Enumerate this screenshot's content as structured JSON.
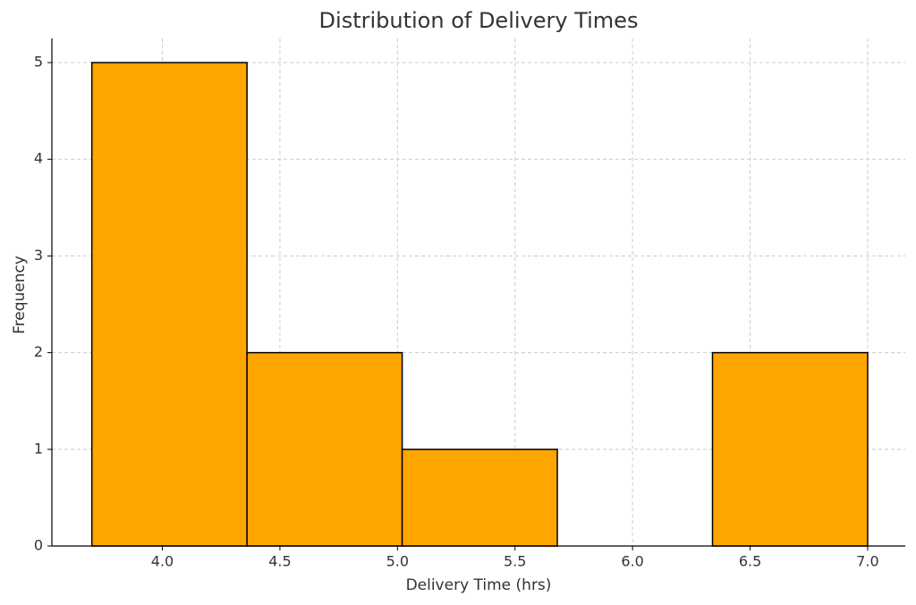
{
  "chart_data": {
    "type": "histogram",
    "title": "Distribution of Delivery Times",
    "x_label": "Delivery Time (hrs)",
    "y_label": "Frequency",
    "bins": [
      3.7,
      4.36,
      5.02,
      5.68,
      6.34,
      7.0
    ],
    "values": [
      5,
      2,
      1,
      0,
      2
    ],
    "color": "#ffa500",
    "edge_color": "#000000",
    "xlim": [
      3.53,
      7.16
    ],
    "ylim": [
      0,
      5.25
    ],
    "xticks": [
      {
        "value": 4.0,
        "label": "4.0"
      },
      {
        "value": 4.5,
        "label": "4.5"
      },
      {
        "value": 5.0,
        "label": "5.0"
      },
      {
        "value": 5.5,
        "label": "5.5"
      },
      {
        "value": 6.0,
        "label": "6.0"
      },
      {
        "value": 6.5,
        "label": "6.5"
      },
      {
        "value": 7.0,
        "label": "7.0"
      }
    ],
    "yticks": [
      0,
      1,
      2,
      3,
      4,
      5
    ],
    "grid": true
  }
}
